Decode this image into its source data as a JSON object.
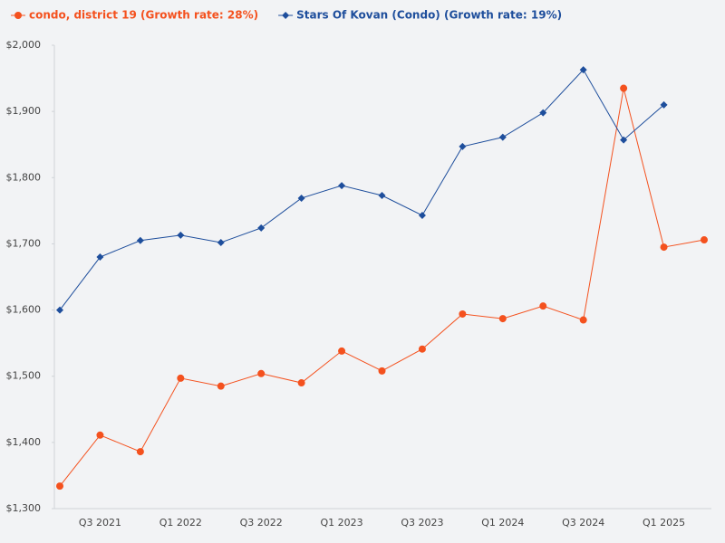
{
  "chart_data": {
    "type": "line",
    "categories": [
      null,
      "Q3 2021",
      null,
      "Q1 2022",
      null,
      "Q3 2022",
      null,
      "Q1 2023",
      null,
      "Q3 2023",
      null,
      "Q1 2024",
      null,
      "Q3 2024",
      null,
      "Q1 2025",
      null
    ],
    "series": [
      {
        "name": "condo, district 19 (Growth rate: 28%)",
        "color": "#f4511e",
        "marker": "circle",
        "values": [
          1334,
          1411,
          1386,
          1497,
          1485,
          1504,
          1490,
          1538,
          1508,
          1541,
          1594,
          1587,
          1606,
          1585,
          1935,
          1695,
          1706
        ]
      },
      {
        "name": "Stars Of Kovan (Condo) (Growth rate: 19%)",
        "color": "#1e4e9c",
        "marker": "diamond",
        "values": [
          1600,
          1680,
          1705,
          1713,
          1702,
          1724,
          1769,
          1788,
          1773,
          1743,
          1847,
          1861,
          1898,
          1963,
          1857,
          1910,
          null
        ]
      }
    ],
    "ylim": [
      1300,
      2000
    ],
    "yticks": [
      {
        "value": 1300,
        "label": "$1,300"
      },
      {
        "value": 1400,
        "label": "$1,400"
      },
      {
        "value": 1500,
        "label": "$1,500"
      },
      {
        "value": 1600,
        "label": "$1,600"
      },
      {
        "value": 1700,
        "label": "$1,700"
      },
      {
        "value": 1800,
        "label": "$1,800"
      },
      {
        "value": 1900,
        "label": "$1,900"
      },
      {
        "value": 2000,
        "label": "$2,000"
      }
    ],
    "grid": false
  }
}
